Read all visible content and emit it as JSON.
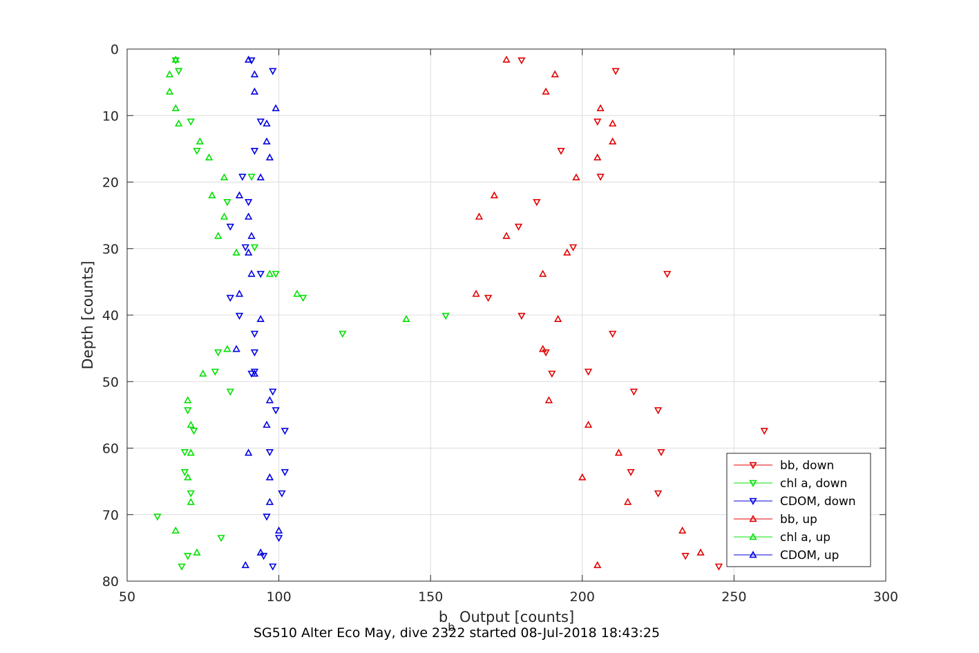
{
  "chart_data": {
    "type": "scatter",
    "xlabel_main": "b",
    "xlabel_sub": "b",
    "xlabel_rest": " Output [counts]",
    "ylabel": "Depth [counts]",
    "caption": "SG510 Alter Eco May, dive 2322 started 08-Jul-2018 18:43:25",
    "xlim": [
      50,
      300
    ],
    "ylim": [
      0,
      80
    ],
    "y_reversed": true,
    "xticks": [
      50,
      100,
      150,
      200,
      250,
      300
    ],
    "yticks": [
      0,
      10,
      20,
      30,
      40,
      50,
      60,
      70,
      80
    ],
    "grid": true,
    "legend_position": "bottom-right",
    "series": [
      {
        "name": "bb, down",
        "color": "#e00000",
        "marker": "triangle-down",
        "points": [
          [
            180,
            1.7
          ],
          [
            211,
            3.3
          ],
          [
            205,
            10.9
          ],
          [
            193,
            15.3
          ],
          [
            206,
            19.2
          ],
          [
            185,
            23.0
          ],
          [
            179,
            26.7
          ],
          [
            197,
            29.8
          ],
          [
            228,
            33.8
          ],
          [
            169,
            37.4
          ],
          [
            180,
            40.1
          ],
          [
            210,
            42.8
          ],
          [
            188,
            45.6
          ],
          [
            202,
            48.5
          ],
          [
            190,
            48.8
          ],
          [
            217,
            51.5
          ],
          [
            225,
            54.3
          ],
          [
            260,
            57.4
          ],
          [
            226,
            60.6
          ],
          [
            216,
            63.6
          ],
          [
            225,
            66.8
          ],
          [
            234,
            76.2
          ],
          [
            245,
            77.8
          ]
        ]
      },
      {
        "name": "chl a, down",
        "color": "#00e000",
        "marker": "triangle-down",
        "points": [
          [
            66,
            1.7
          ],
          [
            67,
            3.3
          ],
          [
            71,
            10.9
          ],
          [
            73,
            15.3
          ],
          [
            91,
            19.2
          ],
          [
            83,
            23.0
          ],
          [
            92,
            29.8
          ],
          [
            99,
            33.8
          ],
          [
            108,
            37.4
          ],
          [
            155,
            40.1
          ],
          [
            121,
            42.8
          ],
          [
            80,
            45.6
          ],
          [
            79,
            48.5
          ],
          [
            84,
            51.5
          ],
          [
            70,
            54.3
          ],
          [
            72,
            57.4
          ],
          [
            69,
            60.6
          ],
          [
            69,
            63.6
          ],
          [
            71,
            66.8
          ],
          [
            60,
            70.3
          ],
          [
            81,
            73.5
          ],
          [
            70,
            76.2
          ],
          [
            68,
            77.8
          ]
        ]
      },
      {
        "name": "CDOM, down",
        "color": "#0000e0",
        "marker": "triangle-down",
        "points": [
          [
            91,
            1.7
          ],
          [
            98,
            3.3
          ],
          [
            94,
            10.9
          ],
          [
            92,
            15.3
          ],
          [
            88,
            19.2
          ],
          [
            90,
            23.0
          ],
          [
            84,
            26.7
          ],
          [
            89,
            29.8
          ],
          [
            94,
            33.8
          ],
          [
            84,
            37.4
          ],
          [
            87,
            40.1
          ],
          [
            92,
            42.8
          ],
          [
            92,
            45.6
          ],
          [
            92,
            48.5
          ],
          [
            91,
            48.8
          ],
          [
            98,
            51.5
          ],
          [
            99,
            54.3
          ],
          [
            102,
            57.4
          ],
          [
            97,
            60.6
          ],
          [
            102,
            63.6
          ],
          [
            101,
            66.8
          ],
          [
            96,
            70.3
          ],
          [
            100,
            73.5
          ],
          [
            95,
            76.2
          ],
          [
            98,
            77.8
          ]
        ]
      },
      {
        "name": "bb, up",
        "color": "#e00000",
        "marker": "triangle-up",
        "points": [
          [
            175,
            1.6
          ],
          [
            191,
            3.8
          ],
          [
            188,
            6.4
          ],
          [
            206,
            8.9
          ],
          [
            210,
            11.2
          ],
          [
            210,
            13.9
          ],
          [
            205,
            16.3
          ],
          [
            198,
            19.3
          ],
          [
            171,
            22.0
          ],
          [
            166,
            25.2
          ],
          [
            175,
            28.1
          ],
          [
            195,
            30.6
          ],
          [
            187,
            33.8
          ],
          [
            165,
            36.8
          ],
          [
            192,
            40.6
          ],
          [
            187,
            45.1
          ],
          [
            189,
            52.8
          ],
          [
            202,
            56.5
          ],
          [
            212,
            60.7
          ],
          [
            200,
            64.4
          ],
          [
            215,
            68.1
          ],
          [
            233,
            72.4
          ],
          [
            239,
            75.7
          ],
          [
            205,
            77.6
          ]
        ]
      },
      {
        "name": "chl a, up",
        "color": "#00e000",
        "marker": "triangle-up",
        "points": [
          [
            66,
            1.6
          ],
          [
            64,
            3.8
          ],
          [
            64,
            6.4
          ],
          [
            66,
            8.9
          ],
          [
            67,
            11.2
          ],
          [
            74,
            13.9
          ],
          [
            77,
            16.3
          ],
          [
            82,
            19.3
          ],
          [
            78,
            22.0
          ],
          [
            82,
            25.2
          ],
          [
            80,
            28.1
          ],
          [
            86,
            30.6
          ],
          [
            97,
            33.8
          ],
          [
            106,
            36.8
          ],
          [
            142,
            40.6
          ],
          [
            83,
            45.1
          ],
          [
            75,
            48.8
          ],
          [
            70,
            52.8
          ],
          [
            71,
            56.5
          ],
          [
            71,
            60.7
          ],
          [
            70,
            64.4
          ],
          [
            71,
            68.1
          ],
          [
            66,
            72.4
          ],
          [
            73,
            75.7
          ]
        ]
      },
      {
        "name": "CDOM, up",
        "color": "#0000e0",
        "marker": "triangle-up",
        "points": [
          [
            90,
            1.6
          ],
          [
            92,
            3.8
          ],
          [
            92,
            6.4
          ],
          [
            99,
            8.9
          ],
          [
            96,
            11.2
          ],
          [
            96,
            13.9
          ],
          [
            97,
            16.3
          ],
          [
            94,
            19.3
          ],
          [
            87,
            22.0
          ],
          [
            90,
            25.2
          ],
          [
            91,
            28.1
          ],
          [
            90,
            30.6
          ],
          [
            91,
            33.8
          ],
          [
            87,
            36.8
          ],
          [
            94,
            40.6
          ],
          [
            86,
            45.1
          ],
          [
            92,
            48.8
          ],
          [
            97,
            52.8
          ],
          [
            96,
            56.5
          ],
          [
            90,
            60.7
          ],
          [
            97,
            64.4
          ],
          [
            97,
            68.1
          ],
          [
            100,
            72.4
          ],
          [
            94,
            75.7
          ],
          [
            89,
            77.6
          ]
        ]
      }
    ]
  }
}
